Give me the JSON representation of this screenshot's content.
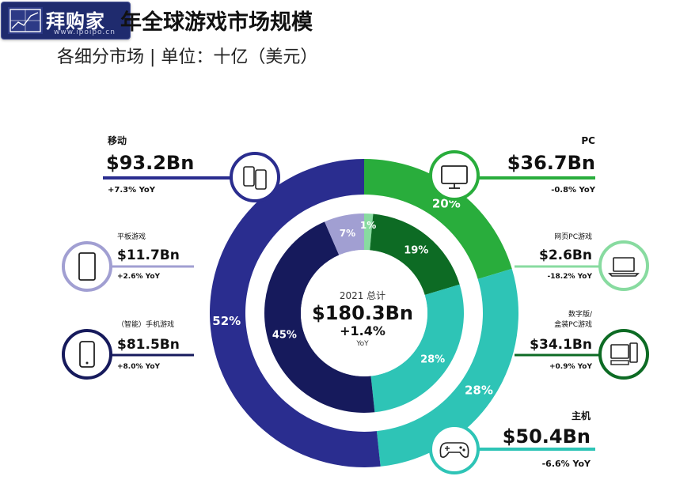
{
  "logo": {
    "text": "拜购家",
    "url": "www.ipoipo.cn"
  },
  "title": "年全球游戏市场规模",
  "subtitle": "各细分市场 | 单位：十亿（美元）",
  "center": {
    "label": "2021 总计",
    "total": "$180.3Bn",
    "growth": "+1.4%",
    "yoy": "YoY"
  },
  "colors": {
    "mobile": "#2a2d8f",
    "pc": "#29ad3c",
    "console": "#2ec4b6",
    "tablet": "#a19fd2",
    "smartphone": "#161a5c",
    "pc_browser": "#88dba0",
    "pc_boxed": "#0d6b24",
    "line_gray": "#9c9c9c"
  },
  "chart_data": [
    {
      "type": "pie",
      "title": "",
      "ring": "outer",
      "categories": [
        "移动",
        "PC",
        "主机"
      ],
      "values": [
        93.2,
        36.7,
        50.4
      ],
      "value_labels": [
        "$93.2Bn",
        "$36.7Bn",
        "$50.4Bn"
      ],
      "yoy": [
        "+7.3% YoY",
        "-0.8% YoY",
        "-6.6% YoY"
      ],
      "percent_labels": [
        "52%",
        "20%",
        "28%"
      ],
      "colors": [
        "#2a2d8f",
        "#29ad3c",
        "#2ec4b6"
      ]
    },
    {
      "type": "pie",
      "title": "",
      "ring": "inner",
      "categories": [
        "平板游戏",
        "（智能）手机游戏",
        "网页PC游戏",
        "数字版/盒装PC游戏",
        "主机"
      ],
      "values": [
        11.7,
        81.5,
        2.6,
        34.1,
        50.4
      ],
      "value_labels": [
        "$11.7Bn",
        "$81.5Bn",
        "$2.6Bn",
        "$34.1Bn",
        "$50.4Bn"
      ],
      "yoy": [
        "+2.6% YoY",
        "+8.0% YoY",
        "-18.2% YoY",
        "+0.9% YoY",
        "-6.6% YoY"
      ],
      "percent_labels": [
        "7%",
        "45%",
        "1%",
        "19%",
        "28%"
      ],
      "colors": [
        "#a19fd2",
        "#161a5c",
        "#88dba0",
        "#0d6b24",
        "#2ec4b6"
      ]
    }
  ],
  "callouts": [
    {
      "key": "mobile",
      "label": "移动",
      "value": "$93.2Bn",
      "yoy": "+7.3% YoY",
      "icon": "phones-icon"
    },
    {
      "key": "pc",
      "label": "PC",
      "value": "$36.7Bn",
      "yoy": "-0.8% YoY",
      "icon": "monitor-icon"
    },
    {
      "key": "tablet",
      "label": "平板游戏",
      "value": "$11.7Bn",
      "yoy": "+2.6% YoY",
      "icon": "tablet-icon"
    },
    {
      "key": "pc_browser",
      "label": "网页PC游戏",
      "value": "$2.6Bn",
      "yoy": "-18.2% YoY",
      "icon": "laptop-icon"
    },
    {
      "key": "smartphone",
      "label": "（智能）手机游戏",
      "value": "$81.5Bn",
      "yoy": "+8.0% YoY",
      "icon": "smartphone-icon"
    },
    {
      "key": "pc_boxed",
      "label": "数字版/盒装PC游戏",
      "value": "$34.1Bn",
      "yoy": "+0.9% YoY",
      "icon": "desktop-computer-icon"
    },
    {
      "key": "console",
      "label": "主机",
      "value": "$50.4Bn",
      "yoy": "-6.6% YoY",
      "icon": "gamepad-icon"
    }
  ]
}
